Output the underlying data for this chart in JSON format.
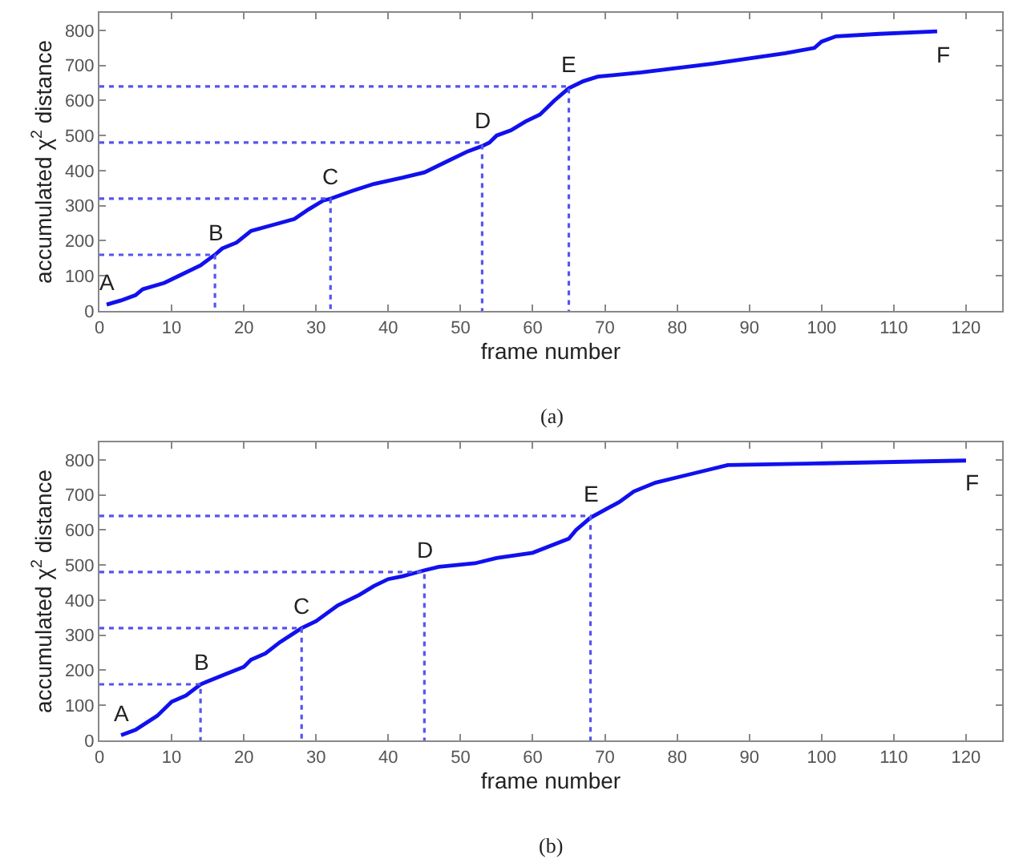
{
  "chart_data": [
    {
      "type": "line",
      "xlabel": "frame number",
      "ylabel": "accumulated χ$^{2}$ distance",
      "xlim": [
        0,
        125
      ],
      "ylim": [
        0,
        850
      ],
      "xticks": [
        0,
        10,
        20,
        30,
        40,
        50,
        60,
        70,
        80,
        90,
        100,
        110,
        120
      ],
      "yticks": [
        0,
        100,
        200,
        300,
        400,
        500,
        600,
        700,
        800
      ],
      "series": [
        {
          "color": "#1010ee",
          "line_style": "solid",
          "x": [
            1,
            3,
            5,
            6,
            9,
            11,
            14,
            16,
            17,
            19,
            21,
            24,
            27,
            29,
            31,
            32,
            35,
            38,
            42,
            45,
            48,
            51,
            53,
            54,
            55,
            57,
            59,
            61,
            63,
            65,
            67,
            69,
            75,
            85,
            95,
            99,
            100,
            102,
            108,
            116
          ],
          "values": [
            18,
            30,
            45,
            62,
            80,
            100,
            130,
            160,
            178,
            195,
            228,
            245,
            262,
            290,
            315,
            320,
            342,
            362,
            380,
            395,
            425,
            455,
            470,
            480,
            500,
            515,
            540,
            560,
            600,
            635,
            655,
            668,
            680,
            705,
            735,
            750,
            768,
            783,
            790,
            797
          ]
        },
        {
          "color": "#5555ee",
          "line_style": "dotted",
          "x": [
            0,
            16,
            16
          ],
          "values": [
            160,
            160,
            0
          ]
        },
        {
          "color": "#5555ee",
          "line_style": "dotted",
          "x": [
            0,
            32,
            32
          ],
          "values": [
            320,
            320,
            0
          ]
        },
        {
          "color": "#5555ee",
          "line_style": "dotted",
          "x": [
            0,
            53,
            53
          ],
          "values": [
            480,
            480,
            0
          ]
        },
        {
          "color": "#5555ee",
          "line_style": "dotted",
          "x": [
            0,
            65,
            65
          ],
          "values": [
            640,
            640,
            0
          ]
        }
      ],
      "annotations": [
        {
          "text": "A",
          "x": 1,
          "y": 18
        },
        {
          "text": "B",
          "x": 16,
          "y": 160
        },
        {
          "text": "C",
          "x": 32,
          "y": 320
        },
        {
          "text": "D",
          "x": 53,
          "y": 480
        },
        {
          "text": "E",
          "x": 65,
          "y": 640
        },
        {
          "text": "F",
          "x": 116,
          "y": 797
        },
        "(a)"
      ]
    },
    {
      "type": "line",
      "xlabel": "frame number",
      "ylabel": "accumulated χ$^{2}$ distance",
      "xlim": [
        0,
        125
      ],
      "ylim": [
        0,
        850
      ],
      "xticks": [
        0,
        10,
        20,
        30,
        40,
        50,
        60,
        70,
        80,
        90,
        100,
        110,
        120
      ],
      "yticks": [
        0,
        100,
        200,
        300,
        400,
        500,
        600,
        700,
        800
      ],
      "series": [
        {
          "color": "#1010ee",
          "line_style": "solid",
          "x": [
            3,
            5,
            8,
            10,
            12,
            14,
            17,
            20,
            21,
            23,
            25,
            28,
            30,
            33,
            36,
            38,
            40,
            42,
            45,
            47,
            52,
            55,
            60,
            65,
            66,
            68,
            72,
            74,
            77,
            80,
            84,
            87,
            100,
            120
          ],
          "values": [
            15,
            30,
            70,
            110,
            128,
            160,
            185,
            210,
            230,
            248,
            280,
            320,
            340,
            385,
            415,
            440,
            460,
            468,
            485,
            495,
            505,
            520,
            535,
            575,
            600,
            635,
            680,
            710,
            735,
            750,
            770,
            785,
            790,
            798
          ]
        },
        {
          "color": "#5555ee",
          "line_style": "dotted",
          "x": [
            0,
            14,
            14
          ],
          "values": [
            160,
            160,
            0
          ]
        },
        {
          "color": "#5555ee",
          "line_style": "dotted",
          "x": [
            0,
            28,
            28
          ],
          "values": [
            320,
            320,
            0
          ]
        },
        {
          "color": "#5555ee",
          "line_style": "dotted",
          "x": [
            0,
            45,
            45
          ],
          "values": [
            480,
            480,
            0
          ]
        },
        {
          "color": "#5555ee",
          "line_style": "dotted",
          "x": [
            0,
            68,
            68
          ],
          "values": [
            640,
            640,
            0
          ]
        }
      ],
      "annotations": [
        {
          "text": "A",
          "x": 3,
          "y": 15
        },
        {
          "text": "B",
          "x": 14,
          "y": 160
        },
        {
          "text": "C",
          "x": 28,
          "y": 320
        },
        {
          "text": "D",
          "x": 45,
          "y": 480
        },
        {
          "text": "E",
          "x": 68,
          "y": 640
        },
        {
          "text": "F",
          "x": 120,
          "y": 798
        },
        "(b)"
      ]
    }
  ]
}
